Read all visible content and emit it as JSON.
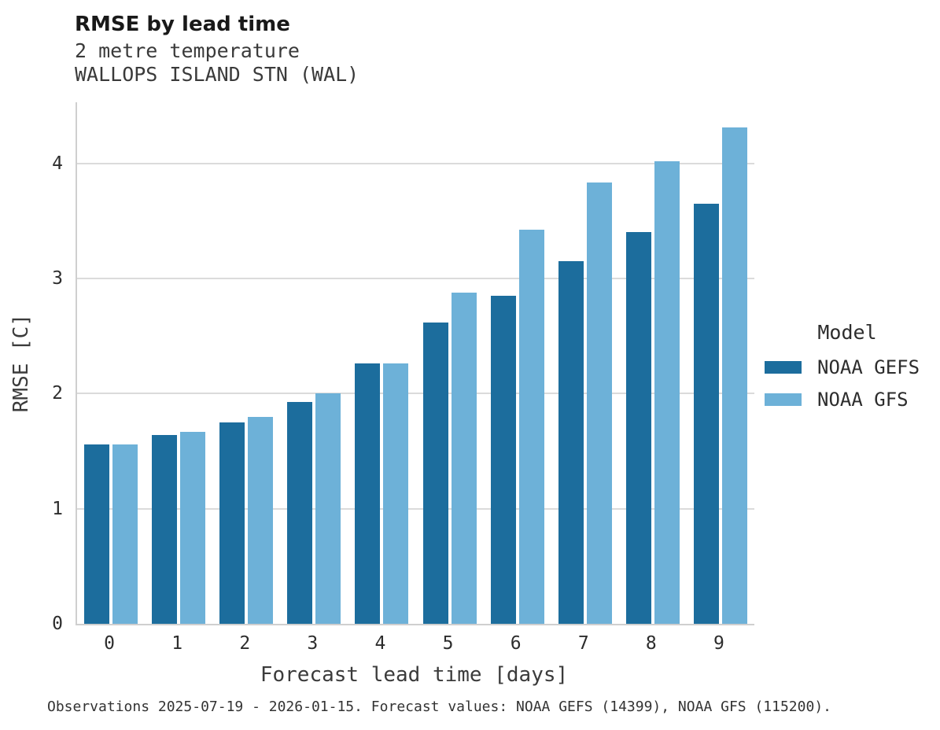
{
  "chart_data": {
    "type": "bar",
    "title": "RMSE by lead time",
    "subtitle1": "2 metre temperature",
    "subtitle2": "WALLOPS ISLAND STN (WAL)",
    "xlabel": "Forecast lead time [days]",
    "ylabel": "RMSE [C]",
    "categories": [
      "0",
      "1",
      "2",
      "3",
      "4",
      "5",
      "6",
      "7",
      "8",
      "9"
    ],
    "series": [
      {
        "name": "NOAA GEFS",
        "color": "#1c6d9d",
        "values": [
          1.56,
          1.64,
          1.75,
          1.93,
          2.26,
          2.62,
          2.85,
          3.15,
          3.4,
          3.65
        ]
      },
      {
        "name": "NOAA GFS",
        "color": "#6db1d8",
        "values": [
          1.56,
          1.67,
          1.8,
          2.0,
          2.26,
          2.88,
          3.42,
          3.83,
          4.02,
          4.31
        ]
      }
    ],
    "ylim": [
      0,
      4.53
    ],
    "yticks": [
      0,
      1,
      2,
      3,
      4
    ],
    "grid": "horizontal",
    "legend_title": "Model",
    "legend_position": "right"
  },
  "caption": "Observations 2025-07-19 - 2026-01-15. Forecast values: NOAA GEFS (14399), NOAA GFS (115200)."
}
